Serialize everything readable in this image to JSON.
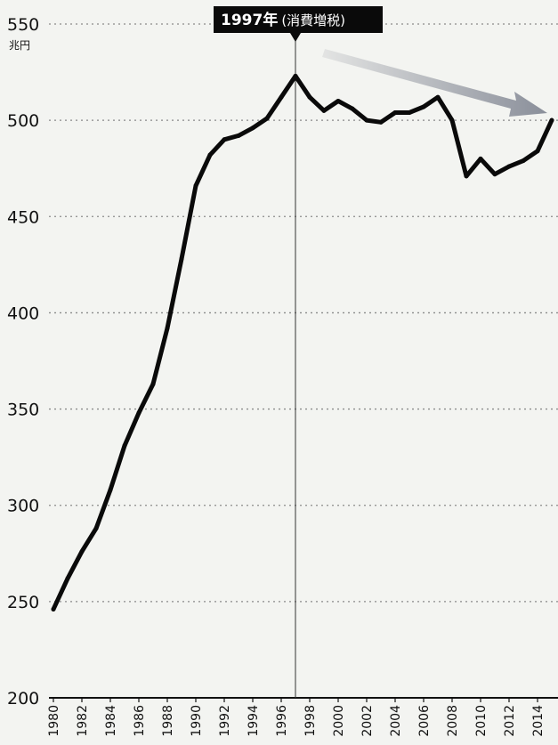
{
  "chart_data": {
    "type": "line",
    "ylabel": "兆円",
    "ylim": [
      200,
      550
    ],
    "y_ticks": [
      "550",
      "500",
      "450",
      "400",
      "350",
      "300",
      "250",
      "200"
    ],
    "x_ticks": [
      "1980",
      "1982",
      "1984",
      "1986",
      "1988",
      "1990",
      "1992",
      "1994",
      "1996",
      "1998",
      "2000",
      "2002",
      "2004",
      "2006",
      "2008",
      "2010",
      "2012",
      "2014"
    ],
    "x": [
      1980,
      1981,
      1982,
      1983,
      1984,
      1985,
      1986,
      1987,
      1988,
      1989,
      1990,
      1991,
      1992,
      1993,
      1994,
      1995,
      1996,
      1997,
      1998,
      1999,
      2000,
      2001,
      2002,
      2003,
      2004,
      2005,
      2006,
      2007,
      2008,
      2009,
      2010,
      2011,
      2012,
      2013,
      2014,
      2015
    ],
    "series": [
      {
        "values": [
          246,
          262,
          276,
          288,
          308,
          331,
          348,
          363,
          392,
          428,
          466,
          482,
          490,
          492,
          496,
          501,
          512,
          523,
          512,
          505,
          510,
          506,
          500,
          499,
          504,
          504,
          507,
          512,
          500,
          471,
          480,
          472,
          476,
          479,
          484,
          500
        ]
      }
    ],
    "grid": true,
    "annotation": {
      "year_label": "1997年",
      "note": "(消費増税)",
      "x": 1997
    },
    "trend_arrow": true,
    "colors": {
      "line": "#0a0a0a",
      "grid": "#8a8a8a",
      "annotation_bg": "#0a0a0a",
      "arrow": "#8a8f9a"
    }
  }
}
